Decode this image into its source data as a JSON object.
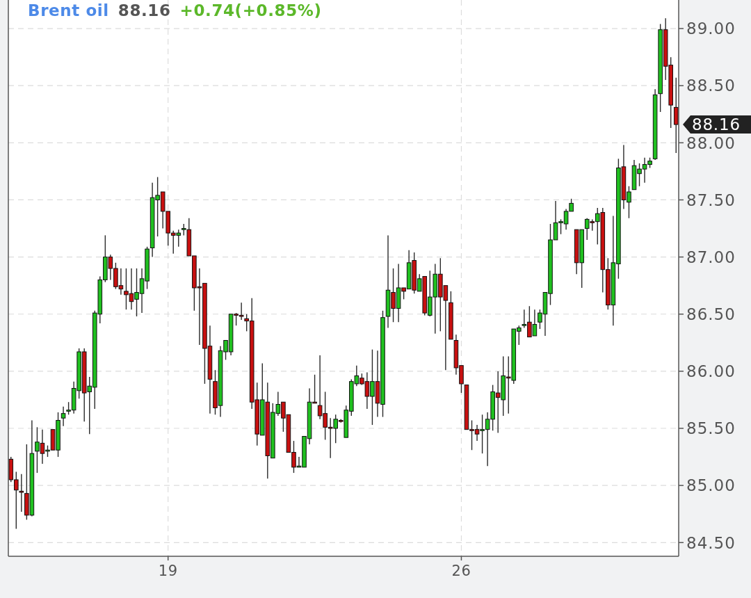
{
  "chart_data": {
    "type": "candlestick",
    "title": "Brent oil",
    "annotations": [
      "88.16",
      "+0.74(+0.85%)",
      "88.16"
    ],
    "categories": [
      null,
      null,
      null,
      null,
      null,
      null,
      null,
      null,
      null,
      null,
      null,
      null,
      null,
      null,
      null,
      null,
      null,
      null,
      null,
      null,
      null,
      null,
      null,
      null,
      null,
      null,
      null,
      null,
      null,
      null,
      "19",
      null,
      null,
      null,
      null,
      null,
      null,
      null,
      null,
      null,
      null,
      null,
      null,
      null,
      null,
      null,
      null,
      null,
      null,
      null,
      null,
      null,
      null,
      null,
      null,
      null,
      null,
      null,
      null,
      null,
      null,
      null,
      null,
      null,
      null,
      null,
      null,
      null,
      null,
      null,
      null,
      null,
      null,
      null,
      null,
      null,
      null,
      null,
      null,
      null,
      null,
      null,
      null,
      null,
      null,
      null,
      "26",
      null,
      null,
      null,
      null,
      null,
      null,
      null,
      null,
      null,
      null,
      null,
      null,
      null,
      null,
      null,
      null,
      null,
      null,
      null,
      null,
      null,
      null,
      null,
      null,
      null,
      null,
      null,
      null,
      null,
      null,
      null,
      null,
      null,
      null,
      null,
      null,
      null,
      null,
      null,
      null,
      null
    ],
    "ohlc": [
      [
        85.23,
        85.25,
        85.03,
        85.05
      ],
      [
        85.05,
        85.12,
        84.62,
        84.96
      ],
      [
        84.95,
        85.1,
        84.77,
        84.94
      ],
      [
        84.93,
        85.36,
        84.7,
        84.74
      ],
      [
        84.74,
        85.57,
        84.73,
        85.28
      ],
      [
        85.3,
        85.51,
        85.11,
        85.38
      ],
      [
        85.37,
        85.49,
        85.19,
        85.28
      ],
      [
        85.3,
        85.35,
        85.25,
        85.31
      ],
      [
        85.49,
        85.49,
        85.31,
        85.31
      ],
      [
        85.31,
        85.64,
        85.25,
        85.57
      ],
      [
        85.59,
        85.69,
        85.52,
        85.63
      ],
      [
        85.65,
        85.73,
        85.62,
        85.66
      ],
      [
        85.66,
        85.91,
        85.63,
        85.85
      ],
      [
        85.83,
        86.2,
        85.76,
        86.17
      ],
      [
        86.17,
        86.2,
        85.56,
        85.81
      ],
      [
        85.82,
        85.95,
        85.45,
        85.87
      ],
      [
        85.86,
        86.53,
        85.67,
        86.51
      ],
      [
        86.5,
        86.83,
        86.42,
        86.8
      ],
      [
        86.8,
        87.19,
        86.78,
        87.0
      ],
      [
        87.0,
        87.02,
        86.8,
        86.9
      ],
      [
        86.9,
        86.95,
        86.72,
        86.74
      ],
      [
        86.75,
        86.9,
        86.67,
        86.72
      ],
      [
        86.7,
        86.9,
        86.54,
        86.67
      ],
      [
        86.68,
        86.9,
        86.54,
        86.61
      ],
      [
        86.63,
        86.9,
        86.48,
        86.69
      ],
      [
        86.68,
        86.9,
        86.51,
        86.81
      ],
      [
        86.79,
        87.09,
        86.72,
        87.07
      ],
      [
        87.08,
        87.65,
        87.0,
        87.52
      ],
      [
        87.5,
        87.7,
        87.18,
        87.54
      ],
      [
        87.57,
        87.57,
        87.25,
        87.4
      ],
      [
        87.4,
        87.4,
        87.1,
        87.21
      ],
      [
        87.21,
        87.23,
        87.03,
        87.19
      ],
      [
        87.19,
        87.24,
        87.09,
        87.21
      ],
      [
        87.24,
        87.29,
        87.19,
        87.25
      ],
      [
        87.24,
        87.34,
        87.01,
        87.01
      ],
      [
        87.01,
        87.01,
        86.53,
        86.73
      ],
      [
        86.74,
        86.9,
        86.23,
        86.73
      ],
      [
        86.77,
        86.77,
        85.89,
        86.2
      ],
      [
        86.22,
        86.4,
        85.63,
        85.93
      ],
      [
        85.91,
        86.01,
        85.62,
        85.68
      ],
      [
        85.7,
        86.22,
        85.6,
        86.18
      ],
      [
        86.17,
        86.27,
        86.1,
        86.27
      ],
      [
        86.17,
        86.5,
        86.14,
        86.5
      ],
      [
        86.5,
        86.51,
        86.4,
        86.49
      ],
      [
        86.49,
        86.6,
        86.45,
        86.48
      ],
      [
        86.46,
        86.5,
        86.35,
        86.44
      ],
      [
        86.44,
        86.64,
        85.67,
        85.73
      ],
      [
        85.75,
        85.9,
        85.35,
        85.45
      ],
      [
        85.44,
        86.07,
        85.44,
        85.75
      ],
      [
        85.73,
        85.9,
        85.06,
        85.26
      ],
      [
        85.24,
        85.72,
        85.24,
        85.64
      ],
      [
        85.63,
        85.82,
        85.61,
        85.71
      ],
      [
        85.73,
        85.73,
        85.47,
        85.59
      ],
      [
        85.62,
        85.62,
        85.29,
        85.29
      ],
      [
        85.29,
        85.39,
        85.11,
        85.16
      ],
      [
        85.16,
        85.25,
        85.16,
        85.17
      ],
      [
        85.16,
        85.43,
        85.16,
        85.43
      ],
      [
        85.41,
        85.85,
        85.36,
        85.73
      ],
      [
        85.73,
        85.97,
        85.72,
        85.72
      ],
      [
        85.7,
        86.14,
        85.58,
        85.61
      ],
      [
        85.63,
        85.82,
        85.4,
        85.51
      ],
      [
        85.51,
        85.59,
        85.24,
        85.5
      ],
      [
        85.5,
        85.62,
        85.37,
        85.58
      ],
      [
        85.57,
        85.58,
        85.55,
        85.56
      ],
      [
        85.42,
        85.7,
        85.42,
        85.66
      ],
      [
        85.65,
        85.93,
        85.61,
        85.91
      ],
      [
        85.89,
        86.05,
        85.87,
        85.96
      ],
      [
        85.94,
        85.98,
        85.88,
        85.89
      ],
      [
        85.91,
        85.99,
        85.67,
        85.78
      ],
      [
        85.78,
        86.19,
        85.53,
        85.91
      ],
      [
        85.91,
        86.18,
        85.6,
        85.72
      ],
      [
        85.71,
        86.53,
        85.6,
        86.47
      ],
      [
        86.48,
        87.19,
        86.38,
        86.71
      ],
      [
        86.69,
        86.9,
        86.43,
        86.55
      ],
      [
        86.55,
        86.94,
        86.43,
        86.73
      ],
      [
        86.73,
        86.73,
        86.63,
        86.7
      ],
      [
        86.72,
        87.06,
        86.72,
        86.95
      ],
      [
        86.97,
        87.04,
        86.68,
        86.71
      ],
      [
        86.7,
        86.85,
        86.7,
        86.81
      ],
      [
        86.83,
        86.83,
        86.49,
        86.51
      ],
      [
        86.49,
        86.88,
        86.48,
        86.65
      ],
      [
        86.65,
        86.94,
        86.33,
        86.85
      ],
      [
        86.85,
        86.99,
        86.35,
        86.65
      ],
      [
        86.75,
        86.75,
        86.01,
        86.62
      ],
      [
        86.6,
        86.7,
        86.28,
        86.28
      ],
      [
        86.27,
        86.32,
        85.97,
        86.03
      ],
      [
        86.05,
        86.05,
        85.81,
        85.89
      ],
      [
        85.88,
        85.88,
        85.49,
        85.49
      ],
      [
        85.49,
        85.57,
        85.31,
        85.48
      ],
      [
        85.49,
        85.53,
        85.39,
        85.45
      ],
      [
        85.48,
        85.62,
        85.28,
        85.49
      ],
      [
        85.49,
        85.64,
        85.17,
        85.58
      ],
      [
        85.58,
        85.88,
        85.48,
        85.82
      ],
      [
        85.81,
        86.0,
        85.46,
        85.77
      ],
      [
        85.75,
        86.13,
        85.61,
        85.96
      ],
      [
        85.95,
        86.13,
        85.63,
        85.94
      ],
      [
        85.92,
        86.37,
        85.89,
        86.37
      ],
      [
        86.35,
        86.4,
        86.23,
        86.38
      ],
      [
        86.4,
        86.54,
        86.38,
        86.41
      ],
      [
        86.43,
        86.57,
        86.3,
        86.3
      ],
      [
        86.31,
        86.54,
        86.31,
        86.41
      ],
      [
        86.43,
        86.54,
        86.37,
        86.51
      ],
      [
        86.5,
        86.69,
        86.31,
        86.69
      ],
      [
        86.68,
        87.29,
        86.58,
        87.15
      ],
      [
        87.15,
        87.49,
        87.15,
        87.3
      ],
      [
        87.3,
        87.33,
        87.2,
        87.31
      ],
      [
        87.29,
        87.42,
        87.24,
        87.4
      ],
      [
        87.4,
        87.51,
        87.4,
        87.47
      ],
      [
        87.24,
        87.24,
        86.85,
        86.95
      ],
      [
        86.95,
        87.24,
        86.73,
        87.24
      ],
      [
        87.25,
        87.34,
        87.15,
        87.33
      ],
      [
        87.31,
        87.33,
        87.23,
        87.3
      ],
      [
        87.31,
        87.43,
        87.11,
        87.38
      ],
      [
        87.39,
        87.43,
        86.69,
        86.89
      ],
      [
        86.89,
        86.99,
        86.54,
        86.58
      ],
      [
        86.58,
        87.36,
        86.4,
        86.95
      ],
      [
        86.94,
        87.86,
        86.81,
        87.78
      ],
      [
        87.79,
        87.98,
        87.42,
        87.5
      ],
      [
        87.48,
        87.62,
        87.34,
        87.57
      ],
      [
        87.59,
        87.85,
        87.59,
        87.8
      ],
      [
        87.73,
        87.82,
        87.62,
        87.77
      ],
      [
        87.77,
        87.87,
        87.65,
        87.81
      ],
      [
        87.81,
        87.87,
        87.78,
        87.84
      ],
      [
        87.86,
        88.47,
        87.85,
        88.42
      ],
      [
        88.43,
        89.04,
        88.27,
        88.99
      ],
      [
        88.99,
        89.09,
        88.55,
        88.67
      ],
      [
        88.68,
        88.75,
        88.13,
        88.33
      ],
      [
        88.31,
        88.57,
        87.91,
        88.16
      ]
    ],
    "colors": [
      "#c81010",
      "#c81010",
      "#c81010",
      "#c81010",
      "#20c020",
      "#20c020",
      "#c81010",
      "#20c020",
      "#c81010",
      "#20c020",
      "#20c020",
      "#20c020",
      "#20c020",
      "#20c020",
      "#c81010",
      "#20c020",
      "#20c020",
      "#20c020",
      "#20c020",
      "#c81010",
      "#c81010",
      "#c81010",
      "#c81010",
      "#c81010",
      "#20c020",
      "#20c020",
      "#20c020",
      "#20c020",
      "#20c020",
      "#c81010",
      "#c81010",
      "#c81010",
      "#20c020",
      "#20c020",
      "#c81010",
      "#c81010",
      "#c81010",
      "#c81010",
      "#c81010",
      "#c81010",
      "#20c020",
      "#20c020",
      "#20c020",
      "#c81010",
      "#c81010",
      "#c81010",
      "#c81010",
      "#c81010",
      "#20c020",
      "#c81010",
      "#20c020",
      "#20c020",
      "#c81010",
      "#c81010",
      "#c81010",
      "#20c020",
      "#20c020",
      "#20c020",
      "#c81010",
      "#c81010",
      "#c81010",
      "#c81010",
      "#20c020",
      "#c81010",
      "#20c020",
      "#20c020",
      "#20c020",
      "#c81010",
      "#c81010",
      "#20c020",
      "#c81010",
      "#20c020",
      "#20c020",
      "#c81010",
      "#20c020",
      "#c81010",
      "#20c020",
      "#c81010",
      "#20c020",
      "#c81010",
      "#20c020",
      "#20c020",
      "#c81010",
      "#c81010",
      "#c81010",
      "#c81010",
      "#c81010",
      "#c81010",
      "#c81010",
      "#c81010",
      "#20c020",
      "#20c020",
      "#20c020",
      "#c81010",
      "#20c020",
      "#c81010",
      "#20c020",
      "#20c020",
      "#20c020",
      "#c81010",
      "#20c020",
      "#20c020",
      "#20c020",
      "#20c020",
      "#20c020",
      "#20c020",
      "#20c020",
      "#20c020",
      "#c81010",
      "#20c020",
      "#20c020",
      "#c81010",
      "#20c020",
      "#c81010",
      "#c81010",
      "#20c020",
      "#20c020",
      "#c81010",
      "#20c020",
      "#20c020",
      "#20c020",
      "#20c020",
      "#20c020",
      "#20c020",
      "#20c020",
      "#c81010",
      "#c81010",
      "#c81010"
    ],
    "ylim": [
      84.38,
      89.25
    ],
    "yticks": [
      {
        "value": 84.5,
        "label": "84.50"
      },
      {
        "value": 85,
        "label": "85.00"
      },
      {
        "value": 85.5,
        "label": "85.50"
      },
      {
        "value": 86,
        "label": "86.00"
      },
      {
        "value": 86.5,
        "label": "86.50"
      },
      {
        "value": 87,
        "label": "87.00"
      },
      {
        "value": 87.5,
        "label": "87.50"
      },
      {
        "value": 88,
        "label": "88.00"
      },
      {
        "value": 88.5,
        "label": "88.50"
      },
      {
        "value": 89,
        "label": "89.00"
      }
    ],
    "grid": true
  }
}
